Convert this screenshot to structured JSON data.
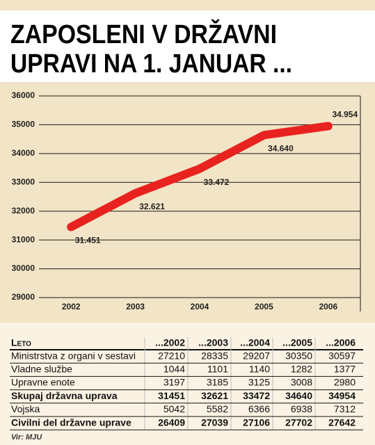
{
  "chart_data": {
    "type": "line",
    "title": [
      "ZAPOSLENI V DRŽAVNI",
      "UPRAVI NA 1. JANUAR ..."
    ],
    "categories": [
      "2002",
      "2003",
      "2004",
      "2005",
      "2006"
    ],
    "series": [
      {
        "name": "Skupaj državna uprava",
        "color": "#e8231f",
        "values": [
          31451,
          32621,
          33472,
          34640,
          34954
        ],
        "value_labels": [
          "31.451",
          "32.621",
          "33.472",
          "34.640",
          "34.954"
        ]
      }
    ],
    "ylim": [
      29000,
      36000
    ],
    "yticks": [
      29000,
      30000,
      31000,
      32000,
      33000,
      34000,
      35000,
      36000
    ],
    "grid": true
  },
  "table": {
    "header": [
      "Leto",
      "...2002",
      "...2003",
      "...2004",
      "...2005",
      "...2006"
    ],
    "rows": [
      {
        "cells": [
          "Ministrstva z organi v sestavi",
          27210,
          28335,
          29207,
          30350,
          30597
        ],
        "bold": false
      },
      {
        "cells": [
          "Vladne službe",
          1044,
          1101,
          1140,
          1282,
          1377
        ],
        "bold": false
      },
      {
        "cells": [
          "Upravne enote",
          3197,
          3185,
          3125,
          3008,
          2980
        ],
        "bold": false
      },
      {
        "cells": [
          "Skupaj državna uprava",
          31451,
          32621,
          33472,
          34640,
          34954
        ],
        "bold": true
      },
      {
        "cells": [
          "Vojska",
          5042,
          5582,
          6366,
          6938,
          7312
        ],
        "bold": false
      },
      {
        "cells": [
          "Civilni del državne uprave",
          26409,
          27039,
          27106,
          27702,
          27642
        ],
        "bold": true
      }
    ],
    "source": "Vir: MJU"
  }
}
